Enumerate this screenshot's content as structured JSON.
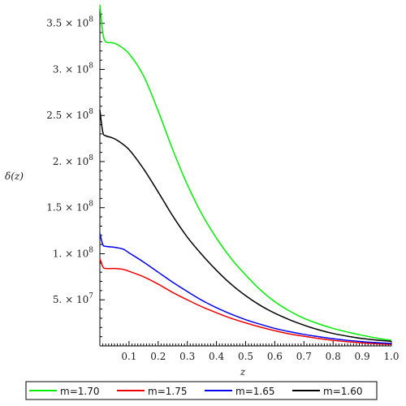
{
  "chart_data": {
    "type": "line",
    "xlabel": "z",
    "ylabel": "δ(z)",
    "xlim": [
      0.0,
      1.0
    ],
    "ylim": [
      0,
      370000000
    ],
    "x_ticks": [
      {
        "value": 0.1,
        "label": "0.1"
      },
      {
        "value": 0.2,
        "label": "0.2"
      },
      {
        "value": 0.3,
        "label": "0.3"
      },
      {
        "value": 0.4,
        "label": "0.4"
      },
      {
        "value": 0.5,
        "label": "0.5"
      },
      {
        "value": 0.6,
        "label": "0.6"
      },
      {
        "value": 0.7,
        "label": "0.7"
      },
      {
        "value": 0.8,
        "label": "0.8"
      },
      {
        "value": 0.9,
        "label": "0.9"
      },
      {
        "value": 1.0,
        "label": "1.0"
      }
    ],
    "y_ticks": [
      {
        "value": 50000000,
        "mantissa": "5.",
        "exp": "7"
      },
      {
        "value": 100000000,
        "mantissa": "1.",
        "exp": "8"
      },
      {
        "value": 150000000,
        "mantissa": "1.5",
        "exp": "8"
      },
      {
        "value": 200000000,
        "mantissa": "2.",
        "exp": "8"
      },
      {
        "value": 250000000,
        "mantissa": "2.5",
        "exp": "8"
      },
      {
        "value": 300000000,
        "mantissa": "3.",
        "exp": "8"
      },
      {
        "value": 350000000,
        "mantissa": "3.5",
        "exp": "8"
      }
    ],
    "legend_position": "bottom",
    "series": [
      {
        "name": "m=1.70",
        "color": "#00ee00",
        "x": [
          0.0,
          0.01,
          0.02,
          0.04,
          0.06,
          0.1,
          0.15,
          0.2,
          0.25,
          0.3,
          0.35,
          0.4,
          0.45,
          0.5,
          0.55,
          0.6,
          0.65,
          0.7,
          0.75,
          0.8,
          0.85,
          0.9,
          0.95,
          1.0
        ],
        "y": [
          370000000,
          340000000,
          330000000,
          329000000,
          327000000,
          317000000,
          293000000,
          255000000,
          213000000,
          175000000,
          143000000,
          117000000,
          95000000,
          77000000,
          61000000,
          48000000,
          38000000,
          30000000,
          24000000,
          19000000,
          15000000,
          11500000,
          8500000,
          6000000
        ]
      },
      {
        "name": "m=1.75",
        "color": "#ee0000",
        "x": [
          0.0,
          0.01,
          0.02,
          0.05,
          0.08,
          0.1,
          0.15,
          0.2,
          0.25,
          0.3,
          0.35,
          0.4,
          0.45,
          0.5,
          0.55,
          0.6,
          0.65,
          0.7,
          0.75,
          0.8,
          0.85,
          0.9,
          0.95,
          1.0
        ],
        "y": [
          95000000,
          86000000,
          84000000,
          84000000,
          83000000,
          81000000,
          75000000,
          67000000,
          58000000,
          50000000,
          42500000,
          36000000,
          30000000,
          25000000,
          20500000,
          16500000,
          13000000,
          10500000,
          8000000,
          6000000,
          4500000,
          3300000,
          2300000,
          1600000
        ]
      },
      {
        "name": "m=1.65",
        "color": "#0000ee",
        "x": [
          0.0,
          0.01,
          0.02,
          0.05,
          0.08,
          0.1,
          0.15,
          0.2,
          0.25,
          0.3,
          0.35,
          0.4,
          0.45,
          0.5,
          0.55,
          0.6,
          0.65,
          0.7,
          0.75,
          0.8,
          0.85,
          0.9,
          0.95,
          1.0
        ],
        "y": [
          122000000,
          110000000,
          108000000,
          107000000,
          105000000,
          101000000,
          91000000,
          80000000,
          69000000,
          59000000,
          49500000,
          41500000,
          34500000,
          28500000,
          23500000,
          19000000,
          15500000,
          12500000,
          10000000,
          7800000,
          6000000,
          4600000,
          3500000,
          2600000
        ]
      },
      {
        "name": "m=1.60",
        "color": "#000000",
        "x": [
          0.0,
          0.01,
          0.02,
          0.04,
          0.06,
          0.1,
          0.15,
          0.2,
          0.25,
          0.3,
          0.35,
          0.4,
          0.45,
          0.5,
          0.55,
          0.6,
          0.65,
          0.7,
          0.75,
          0.8,
          0.85,
          0.9,
          0.95,
          1.0
        ],
        "y": [
          256000000,
          232000000,
          228000000,
          226000000,
          223000000,
          213000000,
          192000000,
          167000000,
          141000000,
          118000000,
          99000000,
          82000000,
          67000000,
          54500000,
          44000000,
          35500000,
          28500000,
          22500000,
          17500000,
          13500000,
          10500000,
          8000000,
          6300000,
          5000000
        ]
      }
    ]
  }
}
